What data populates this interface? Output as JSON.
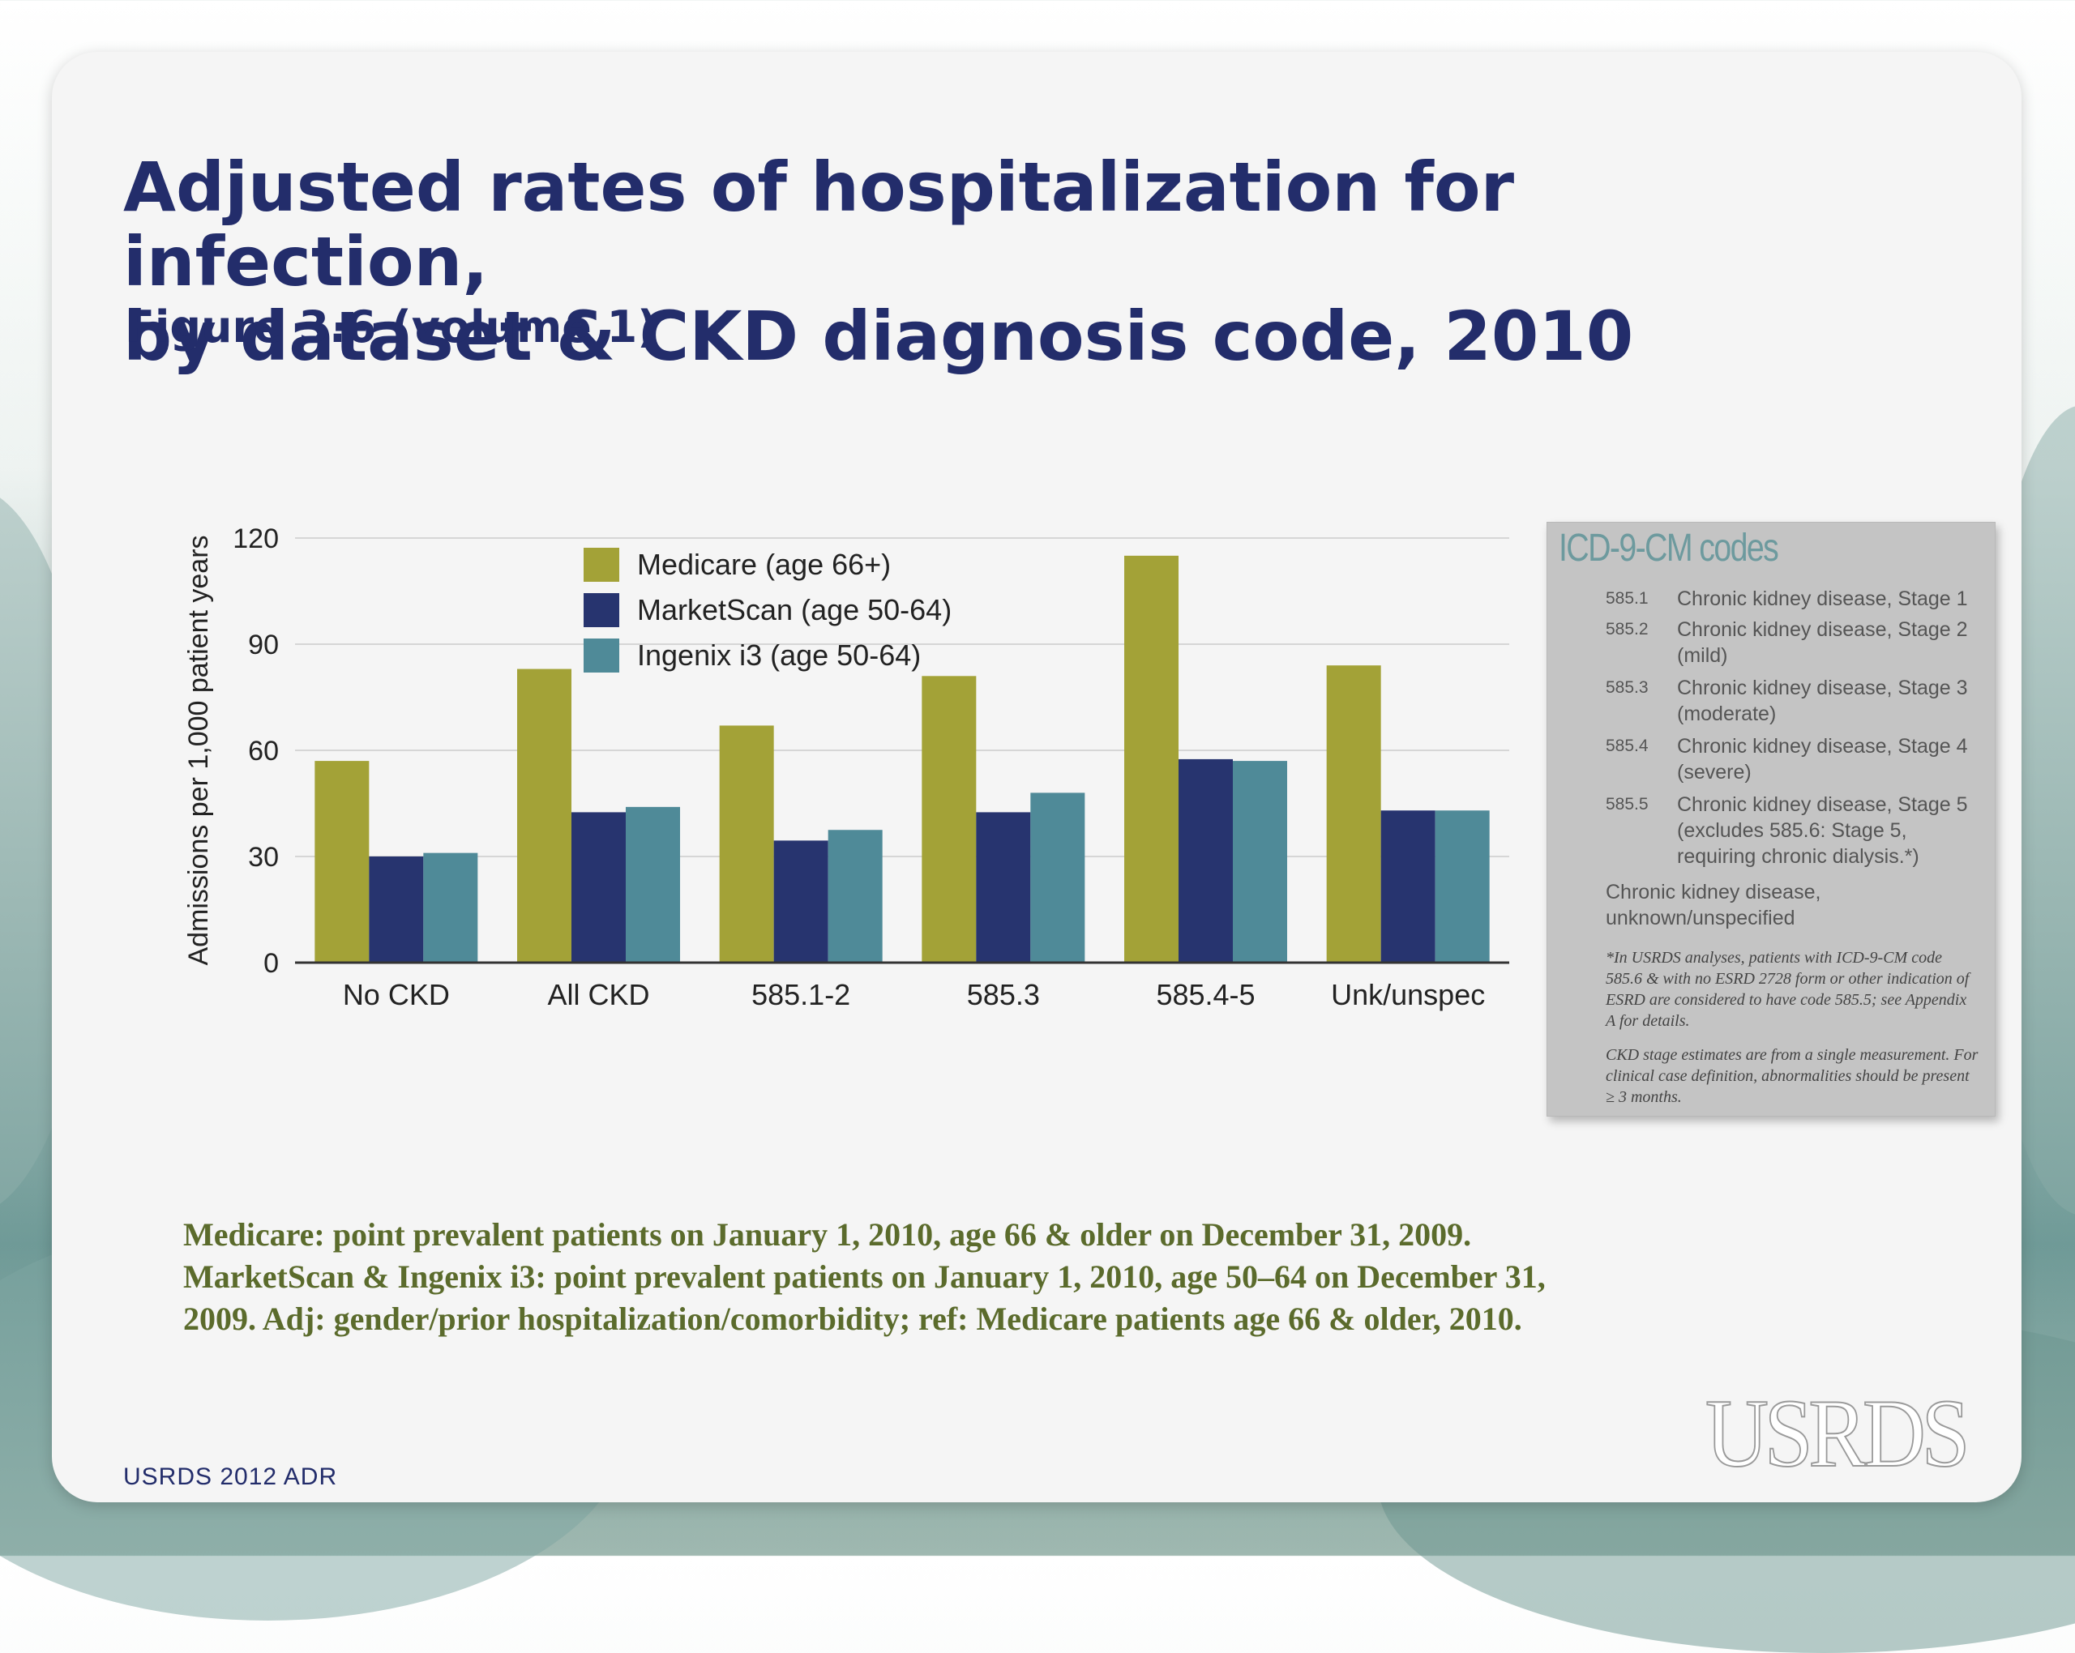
{
  "slide": {
    "title_line1": "Adjusted rates of hospitalization for infection,",
    "title_line2": "by dataset & CKD diagnosis code, 2010",
    "subtitle": "Figure 3.6 (volume 1)",
    "source": "USRDS 2012 ADR",
    "logo_text": "USRDS",
    "footnote_line1": "Medicare: point prevalent patients on January 1, 2010, age 66 & older on December 31, 2009.",
    "footnote_line2": "MarketScan & Ingenix i3: point prevalent patients on January 1, 2010, age 50–64 on December 31,",
    "footnote_line3": "2009. Adj: gender/prior hospitalization/comorbidity; ref: Medicare patients age 66 & older, 2010."
  },
  "codes_box": {
    "title": "ICD-9-CM codes",
    "rows": [
      {
        "code": "585.1",
        "desc": "Chronic kidney disease, Stage 1"
      },
      {
        "code": "585.2",
        "desc": "Chronic kidney disease, Stage 2 (mild)"
      },
      {
        "code": "585.3",
        "desc": "Chronic kidney disease, Stage 3 (moderate)"
      },
      {
        "code": "585.4",
        "desc": "Chronic kidney disease, Stage 4 (severe)"
      },
      {
        "code": "585.5",
        "desc": "Chronic kidney disease, Stage 5 (excludes 585.6: Stage 5, requiring chronic dialysis.*)"
      }
    ],
    "extra": "Chronic kidney disease, unknown/unspecified",
    "note1": "*In USRDS analyses, patients with ICD-9-CM code 585.6 & with no ESRD 2728 form or other indication of ESRD are considered to have code 585.5; see Appendix A for details.",
    "note2": "CKD stage estimates are from a single measurement. For clinical case definition, abnormalities should be present ≥ 3 months."
  },
  "colors": {
    "medicare": "#a3a237",
    "marketscan": "#27346f",
    "ingenix": "#4f8a98",
    "title": "#232d6b",
    "footnote": "#5b6b2c"
  },
  "chart_data": {
    "type": "bar",
    "title": "",
    "ylabel": "Admissions per 1,000 patient years",
    "xlabel": "",
    "ylim": [
      0,
      120
    ],
    "yticks": [
      0,
      30,
      60,
      90,
      120
    ],
    "grid": true,
    "legend_position": "top-center",
    "categories": [
      "No CKD",
      "All CKD",
      "585.1-2",
      "585.3",
      "585.4-5",
      "Unk/unspec"
    ],
    "series": [
      {
        "name": "Medicare (age 66+)",
        "color_key": "medicare",
        "values": [
          57,
          83,
          67,
          81,
          115,
          84
        ]
      },
      {
        "name": "MarketScan (age 50-64)",
        "color_key": "marketscan",
        "values": [
          30,
          42.5,
          34.5,
          42.5,
          57.5,
          43
        ]
      },
      {
        "name": "Ingenix i3 (age 50-64)",
        "color_key": "ingenix",
        "values": [
          31,
          44,
          37.5,
          48,
          57,
          43
        ]
      }
    ]
  }
}
